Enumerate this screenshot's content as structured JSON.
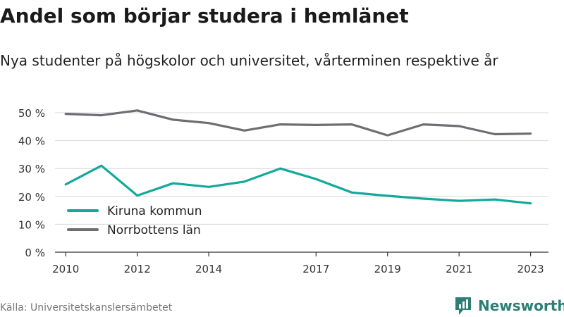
{
  "title": "Andel som börjar studera i hemlänet",
  "subtitle": "Nya studenter på högskolor och universitet, vårterminen respektive år",
  "source": "Källa: Universitetskanslersämbetet",
  "brand": {
    "name": "Newsworthy",
    "icon": "newsworthy-logo-icon",
    "color": "#2d7f76"
  },
  "chart_data": {
    "type": "line",
    "title": "Andel som börjar studera i hemlänet",
    "subtitle": "Nya studenter på högskolor och universitet, vårterminen respektive år",
    "x": [
      2010,
      2011,
      2012,
      2013,
      2014,
      2015,
      2016,
      2017,
      2018,
      2019,
      2020,
      2021,
      2022,
      2023
    ],
    "x_ticks": [
      2010,
      2012,
      2014,
      2017,
      2019,
      2021,
      2023
    ],
    "y_ticks": [
      0,
      10,
      20,
      30,
      40,
      50
    ],
    "y_tick_labels": [
      "0 %",
      "10 %",
      "20 %",
      "30 %",
      "40 %",
      "50 %"
    ],
    "ylim": [
      0,
      50
    ],
    "grid": true,
    "legend_position": "bottom-left",
    "series": [
      {
        "name": "Kiruna kommun",
        "color": "#12a99b",
        "values": [
          24.3,
          31.0,
          20.3,
          24.7,
          23.4,
          25.3,
          30.0,
          26.2,
          21.4,
          20.2,
          19.2,
          18.4,
          18.9,
          17.5
        ]
      },
      {
        "name": "Norrbottens län",
        "color": "#6e6d73",
        "values": [
          49.6,
          49.1,
          50.8,
          47.5,
          46.3,
          43.6,
          45.8,
          45.6,
          45.8,
          41.9,
          45.8,
          45.2,
          42.3,
          42.5
        ]
      }
    ]
  }
}
